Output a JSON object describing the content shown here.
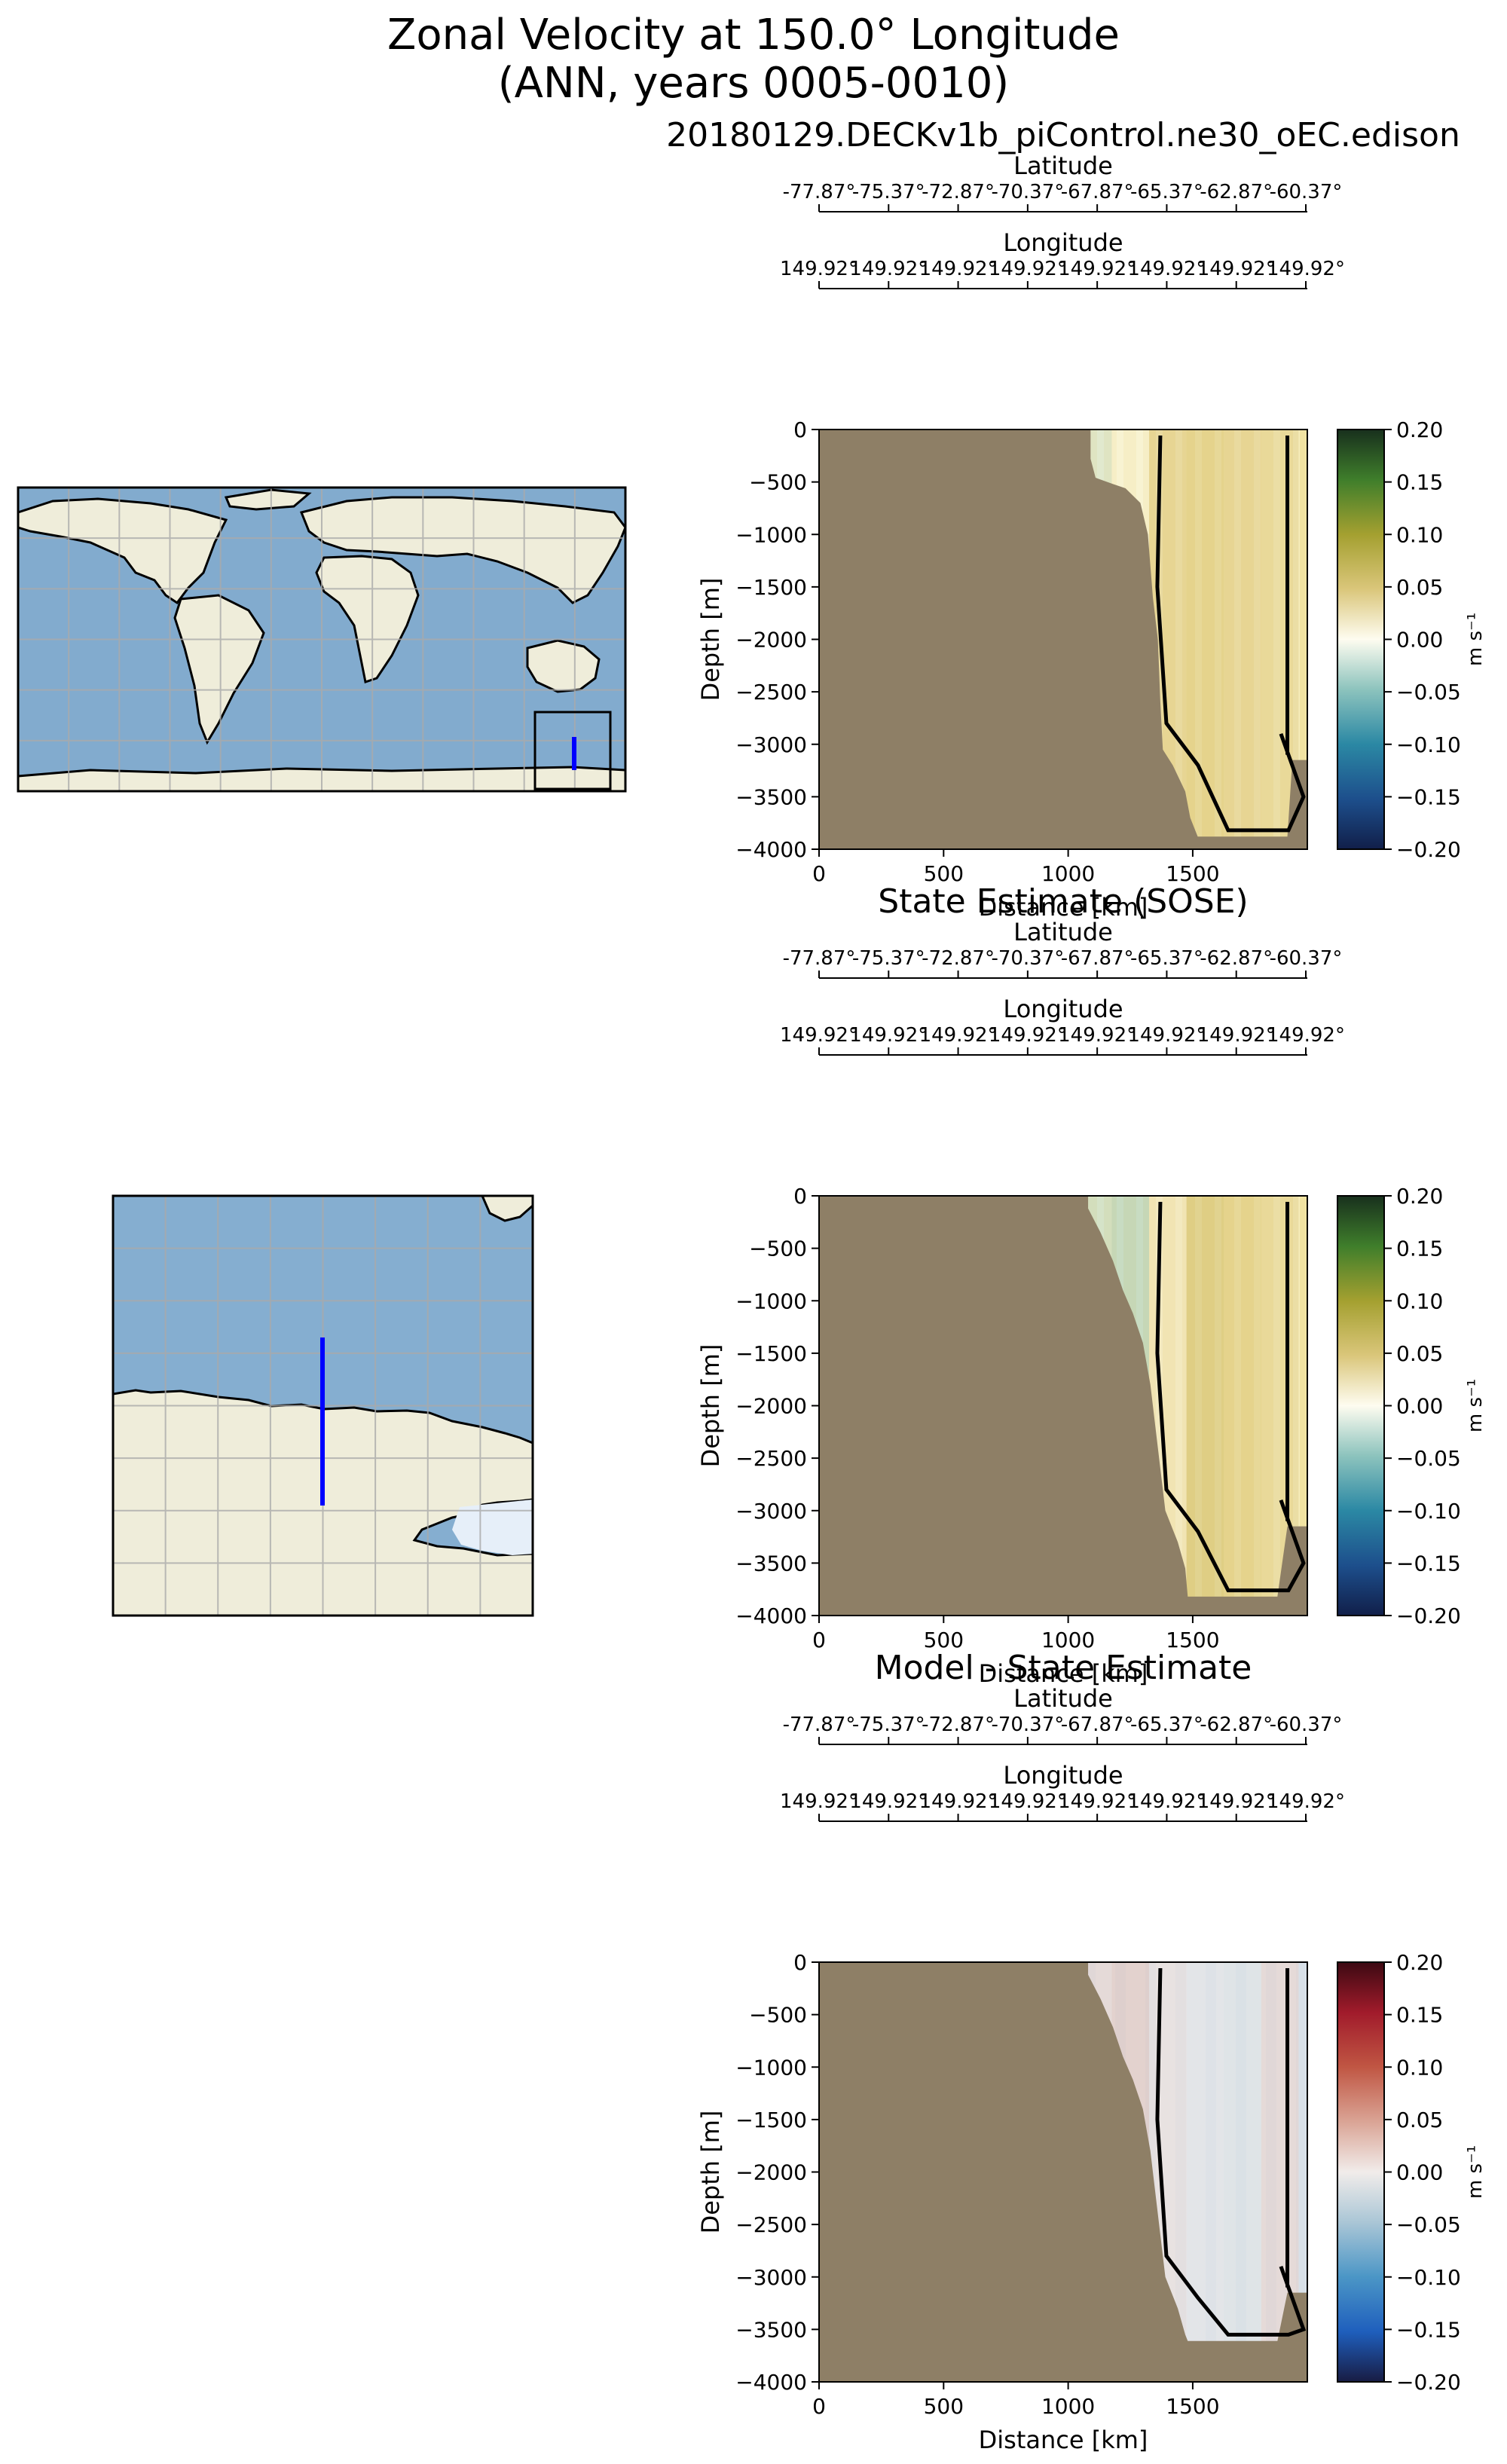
{
  "figure": {
    "title_line1": "Zonal Velocity at 150.0° Longitude",
    "title_line2": "(ANN, years 0005-0010)"
  },
  "colors": {
    "bathymetry": "#8e7f66",
    "land": "#efedda",
    "ocean": "#7ea9cc",
    "transect_line": "#0000ff",
    "contour": "#000000"
  },
  "chart_data": [
    {
      "type": "heatmap",
      "title": "20180129.DECKv1b_piControl.ne30_oEC.edison",
      "xlabel": "Distance [km]",
      "ylabel": "Depth [m]",
      "x_ticks": [
        0,
        500,
        1000,
        1500
      ],
      "xlim": [
        0,
        1960
      ],
      "y_ticks": [
        0,
        -500,
        -1000,
        -1500,
        -2000,
        -2500,
        -3000,
        -3500,
        -4000
      ],
      "ylim": [
        -4000,
        0
      ],
      "secondary_axes": [
        {
          "label": "Latitude",
          "ticks": [
            "-77.87°",
            "-75.37°",
            "-72.87°",
            "-70.37°",
            "-67.87°",
            "-65.37°",
            "-62.87°",
            "-60.37°"
          ]
        },
        {
          "label": "Longitude",
          "ticks": [
            "149.92°",
            "149.92°",
            "149.92°",
            "149.92°",
            "149.92°",
            "149.92°",
            "149.92°",
            "149.92°"
          ]
        }
      ],
      "colorbar": {
        "label": "m s⁻¹",
        "colormap": "delta",
        "vmin": -0.2,
        "vmax": 0.2,
        "ticks": [
          "0.20",
          "0.15",
          "0.10",
          "0.05",
          "0.00",
          "-0.05",
          "-0.10",
          "-0.15",
          "-0.20"
        ]
      },
      "bathymetry_profile": {
        "distance_km": [
          0,
          1090,
          1090,
          1110,
          1180,
          1230,
          1290,
          1320,
          1340,
          1360,
          1370,
          1380,
          1420,
          1470,
          1490,
          1520,
          1560,
          1610,
          1680,
          1770,
          1880,
          1900,
          1960
        ],
        "depth_m": [
          0,
          0,
          -280,
          -460,
          -520,
          -560,
          -700,
          -1000,
          -1600,
          -2000,
          -2600,
          -3050,
          -3200,
          -3450,
          -3700,
          -3880,
          -3880,
          -3880,
          -3880,
          -3880,
          -3880,
          -3150,
          -3150
        ]
      },
      "values_profile": {
        "distance_km": [
          1100,
          1250,
          1400,
          1550,
          1700,
          1850
        ],
        "velocity_ms": [
          -0.02,
          0.005,
          0.045,
          0.05,
          0.045,
          0.04
        ]
      }
    },
    {
      "type": "heatmap",
      "title": "State Estimate (SOSE)",
      "xlabel": "Distance [km]",
      "ylabel": "Depth [m]",
      "x_ticks": [
        0,
        500,
        1000,
        1500
      ],
      "xlim": [
        0,
        1960
      ],
      "y_ticks": [
        0,
        -500,
        -1000,
        -1500,
        -2000,
        -2500,
        -3000,
        -3500,
        -4000
      ],
      "ylim": [
        -4000,
        0
      ],
      "secondary_axes": [
        {
          "label": "Latitude",
          "ticks": [
            "-77.87°",
            "-75.37°",
            "-72.87°",
            "-70.37°",
            "-67.87°",
            "-65.37°",
            "-62.87°",
            "-60.37°"
          ]
        },
        {
          "label": "Longitude",
          "ticks": [
            "149.92°",
            "149.92°",
            "149.92°",
            "149.92°",
            "149.92°",
            "149.92°",
            "149.92°",
            "149.92°"
          ]
        }
      ],
      "colorbar": {
        "label": "m s⁻¹",
        "colormap": "delta",
        "vmin": -0.2,
        "vmax": 0.2,
        "ticks": [
          "0.20",
          "0.15",
          "0.10",
          "0.05",
          "0.00",
          "-0.05",
          "-0.10",
          "-0.15",
          "-0.20"
        ]
      },
      "bathymetry_profile": {
        "distance_km": [
          0,
          1080,
          1080,
          1130,
          1180,
          1220,
          1260,
          1300,
          1330,
          1350,
          1370,
          1390,
          1440,
          1470,
          1480,
          1500,
          1560,
          1640,
          1700,
          1750,
          1840,
          1880,
          1960
        ],
        "depth_m": [
          0,
          0,
          -120,
          -350,
          -620,
          -900,
          -1120,
          -1400,
          -1800,
          -2200,
          -2600,
          -3000,
          -3300,
          -3550,
          -3820,
          -3820,
          -3820,
          -3820,
          -3820,
          -3820,
          -3820,
          -3150,
          -3150
        ]
      },
      "values_profile": {
        "distance_km": [
          1100,
          1250,
          1400,
          1550,
          1700,
          1850
        ],
        "velocity_ms": [
          -0.03,
          -0.04,
          0.02,
          0.06,
          0.05,
          0.04
        ]
      }
    },
    {
      "type": "heatmap",
      "title": "Model - State Estimate",
      "xlabel": "Distance [km]",
      "ylabel": "Depth [m]",
      "x_ticks": [
        0,
        500,
        1000,
        1500
      ],
      "xlim": [
        0,
        1960
      ],
      "y_ticks": [
        0,
        -500,
        -1000,
        -1500,
        -2000,
        -2500,
        -3000,
        -3500,
        -4000
      ],
      "ylim": [
        -4000,
        0
      ],
      "secondary_axes": [
        {
          "label": "Latitude",
          "ticks": [
            "-77.87°",
            "-75.37°",
            "-72.87°",
            "-70.37°",
            "-67.87°",
            "-65.37°",
            "-62.87°",
            "-60.37°"
          ]
        },
        {
          "label": "Longitude",
          "ticks": [
            "149.92°",
            "149.92°",
            "149.92°",
            "149.92°",
            "149.92°",
            "149.92°",
            "149.92°",
            "149.92°"
          ]
        }
      ],
      "colorbar": {
        "label": "m s⁻¹",
        "colormap": "balance",
        "vmin": -0.2,
        "vmax": 0.2,
        "ticks": [
          "0.20",
          "0.15",
          "0.10",
          "0.05",
          "0.00",
          "-0.05",
          "-0.10",
          "-0.15",
          "-0.20"
        ]
      },
      "bathymetry_profile": {
        "distance_km": [
          0,
          1080,
          1080,
          1130,
          1180,
          1220,
          1260,
          1300,
          1330,
          1350,
          1370,
          1390,
          1440,
          1470,
          1480,
          1500,
          1560,
          1640,
          1700,
          1750,
          1840,
          1880,
          1960
        ],
        "depth_m": [
          0,
          0,
          -120,
          -350,
          -620,
          -900,
          -1120,
          -1400,
          -1800,
          -2200,
          -2600,
          -3000,
          -3300,
          -3550,
          -3610,
          -3610,
          -3610,
          -3610,
          -3610,
          -3610,
          -3610,
          -3150,
          -3150
        ]
      },
      "values_profile": {
        "distance_km": [
          1100,
          1250,
          1400,
          1550,
          1700,
          1850
        ],
        "velocity_ms": [
          0.02,
          0.03,
          0.01,
          -0.01,
          -0.015,
          0.02
        ]
      }
    }
  ]
}
